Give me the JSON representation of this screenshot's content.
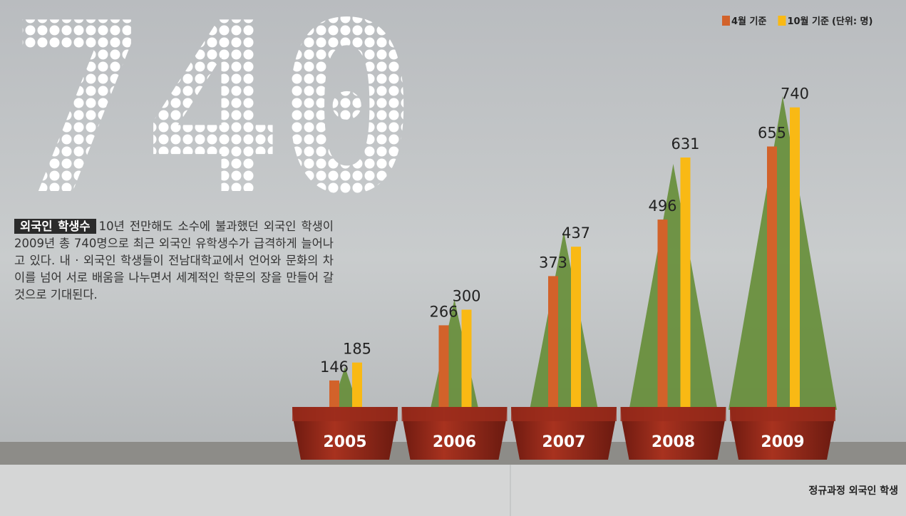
{
  "chart_data": {
    "type": "bar",
    "headline": "740",
    "categories": [
      "2005",
      "2006",
      "2007",
      "2008",
      "2009"
    ],
    "series": [
      {
        "name": "4월 기준",
        "color": "#d2622a",
        "values": [
          146,
          266,
          373,
          496,
          655
        ]
      },
      {
        "name": "10월 기준",
        "color": "#f9b914",
        "values": [
          185,
          300,
          437,
          631,
          740
        ]
      }
    ],
    "unit": "(단위: 명)",
    "label_title": "외국인 학생수",
    "description": "10년 전만해도 소수에 불과했던 외국인 학생이 2009년 총 740명으로 최근 외국인 유학생수가 급격하게 늘어나고 있다. 내 · 외국인 학생들이 전남대학교에서 언어와 문화의 차이를 넘어 서로 배움을 나누면서 세계적인 학문의 장을 만들어 갈 것으로 기대된다.",
    "footnote": "정규과정 외국인 학생"
  }
}
